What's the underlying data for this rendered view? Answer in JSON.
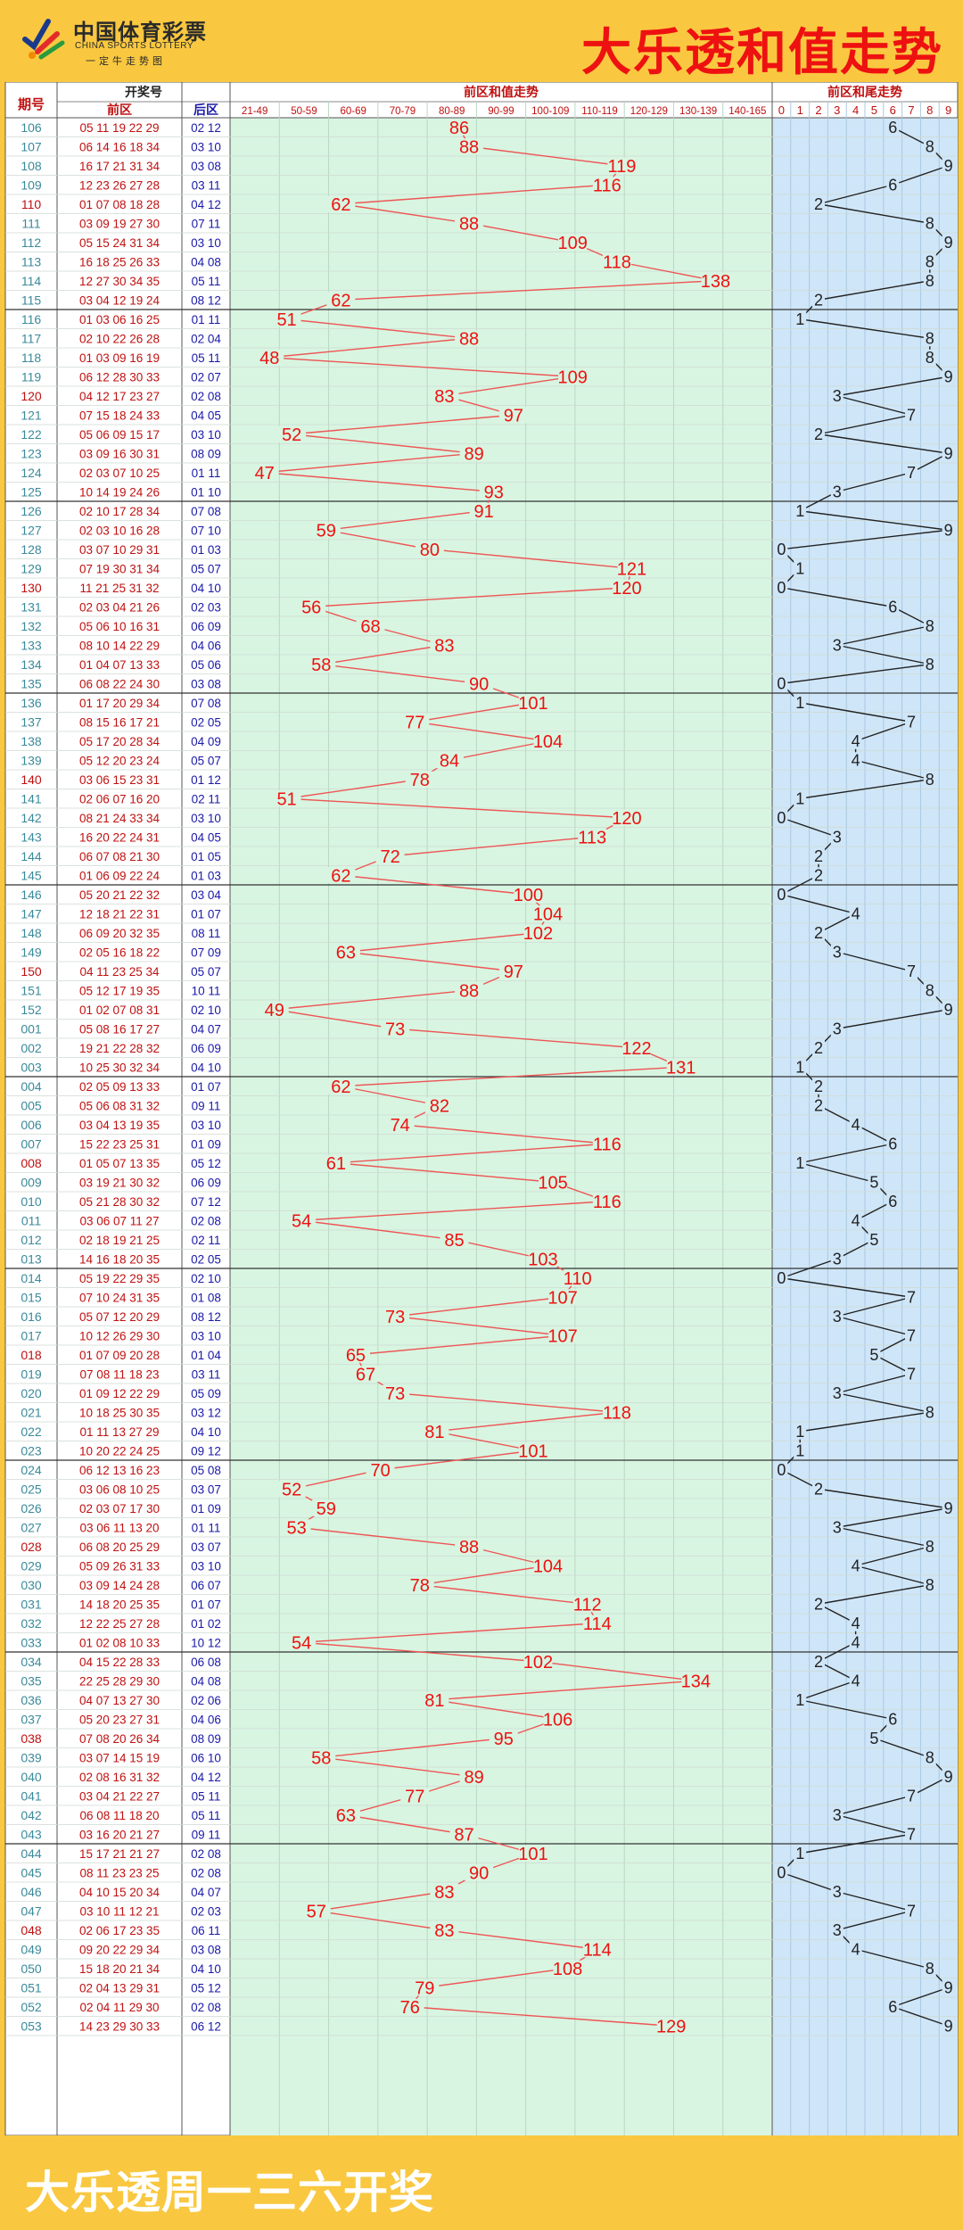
{
  "header": {
    "logo_cn": "中国体育彩票",
    "logo_en": "CHINA SPORTS LOTTERY",
    "logo_tag": "一定牛走势图",
    "title": "大乐透和值走势"
  },
  "footer": {
    "text": "大乐透周一三六开奖"
  },
  "colors": {
    "background": "#f9c840",
    "sum_area": "#d8f5e1",
    "tail_area": "#cfe6f8",
    "red": "#ee1111",
    "blue": "#1a1aa8",
    "teal": "#3a8a9a"
  },
  "chart_data": {
    "type": "line",
    "headers": {
      "issue": "期号",
      "draw": "开奖号",
      "front": "前区",
      "back": "后区",
      "sum": "前区和值走势",
      "tail": "前区和尾走势"
    },
    "sum_bins": [
      "21-49",
      "50-59",
      "60-69",
      "70-79",
      "80-89",
      "90-99",
      "100-109",
      "110-119",
      "120-129",
      "130-139",
      "140-165"
    ],
    "tail_bins": [
      "0",
      "1",
      "2",
      "3",
      "4",
      "5",
      "6",
      "7",
      "8",
      "9"
    ],
    "rows": [
      {
        "issue": "106",
        "front": "05 11 19 22 29",
        "back": "02 12",
        "sum": 86
      },
      {
        "issue": "107",
        "front": "06 14 16 18 34",
        "back": "03 10",
        "sum": 88
      },
      {
        "issue": "108",
        "front": "16 17 21 31 34",
        "back": "03 08",
        "sum": 119
      },
      {
        "issue": "109",
        "front": "12 23 26 27 28",
        "back": "03 11",
        "sum": 116
      },
      {
        "issue": "110",
        "front": "01 07 08 18 28",
        "back": "04 12",
        "sum": 62
      },
      {
        "issue": "111",
        "front": "03 09 19 27 30",
        "back": "07 11",
        "sum": 88
      },
      {
        "issue": "112",
        "front": "05 15 24 31 34",
        "back": "03 10",
        "sum": 109
      },
      {
        "issue": "113",
        "front": "16 18 25 26 33",
        "back": "04 08",
        "sum": 118
      },
      {
        "issue": "114",
        "front": "12 27 30 34 35",
        "back": "05 11",
        "sum": 138
      },
      {
        "issue": "115",
        "front": "03 04 12 19 24",
        "back": "08 12",
        "sum": 62
      },
      {
        "issue": "116",
        "front": "01 03 06 16 25",
        "back": "01 11",
        "sum": 51
      },
      {
        "issue": "117",
        "front": "02 10 22 26 28",
        "back": "02 04",
        "sum": 88
      },
      {
        "issue": "118",
        "front": "01 03 09 16 19",
        "back": "05 11",
        "sum": 48
      },
      {
        "issue": "119",
        "front": "06 12 28 30 33",
        "back": "02 07",
        "sum": 109
      },
      {
        "issue": "120",
        "front": "04 12 17 23 27",
        "back": "02 08",
        "sum": 83
      },
      {
        "issue": "121",
        "front": "07 15 18 24 33",
        "back": "04 05",
        "sum": 97
      },
      {
        "issue": "122",
        "front": "05 06 09 15 17",
        "back": "03 10",
        "sum": 52
      },
      {
        "issue": "123",
        "front": "03 09 16 30 31",
        "back": "08 09",
        "sum": 89
      },
      {
        "issue": "124",
        "front": "02 03 07 10 25",
        "back": "01 11",
        "sum": 47
      },
      {
        "issue": "125",
        "front": "10 14 19 24 26",
        "back": "01 10",
        "sum": 93
      },
      {
        "issue": "126",
        "front": "02 10 17 28 34",
        "back": "07 08",
        "sum": 91
      },
      {
        "issue": "127",
        "front": "02 03 10 16 28",
        "back": "07 10",
        "sum": 59
      },
      {
        "issue": "128",
        "front": "03 07 10 29 31",
        "back": "01 03",
        "sum": 80
      },
      {
        "issue": "129",
        "front": "07 19 30 31 34",
        "back": "05 07",
        "sum": 121
      },
      {
        "issue": "130",
        "front": "11 21 25 31 32",
        "back": "04 10",
        "sum": 120
      },
      {
        "issue": "131",
        "front": "02 03 04 21 26",
        "back": "02 03",
        "sum": 56
      },
      {
        "issue": "132",
        "front": "05 06 10 16 31",
        "back": "06 09",
        "sum": 68
      },
      {
        "issue": "133",
        "front": "08 10 14 22 29",
        "back": "04 06",
        "sum": 83
      },
      {
        "issue": "134",
        "front": "01 04 07 13 33",
        "back": "05 06",
        "sum": 58
      },
      {
        "issue": "135",
        "front": "06 08 22 24 30",
        "back": "03 08",
        "sum": 90
      },
      {
        "issue": "136",
        "front": "01 17 20 29 34",
        "back": "07 08",
        "sum": 101
      },
      {
        "issue": "137",
        "front": "08 15 16 17 21",
        "back": "02 05",
        "sum": 77
      },
      {
        "issue": "138",
        "front": "05 17 20 28 34",
        "back": "04 09",
        "sum": 104
      },
      {
        "issue": "139",
        "front": "05 12 20 23 24",
        "back": "05 07",
        "sum": 84
      },
      {
        "issue": "140",
        "front": "03 06 15 23 31",
        "back": "01 12",
        "sum": 78
      },
      {
        "issue": "141",
        "front": "02 06 07 16 20",
        "back": "02 11",
        "sum": 51
      },
      {
        "issue": "142",
        "front": "08 21 24 33 34",
        "back": "03 10",
        "sum": 120
      },
      {
        "issue": "143",
        "front": "16 20 22 24 31",
        "back": "04 05",
        "sum": 113
      },
      {
        "issue": "144",
        "front": "06 07 08 21 30",
        "back": "01 05",
        "sum": 72
      },
      {
        "issue": "145",
        "front": "01 06 09 22 24",
        "back": "01 03",
        "sum": 62
      },
      {
        "issue": "146",
        "front": "05 20 21 22 32",
        "back": "03 04",
        "sum": 100
      },
      {
        "issue": "147",
        "front": "12 18 21 22 31",
        "back": "01 07",
        "sum": 104
      },
      {
        "issue": "148",
        "front": "06 09 20 32 35",
        "back": "08 11",
        "sum": 102
      },
      {
        "issue": "149",
        "front": "02 05 16 18 22",
        "back": "07 09",
        "sum": 63
      },
      {
        "issue": "150",
        "front": "04 11 23 25 34",
        "back": "05 07",
        "sum": 97
      },
      {
        "issue": "151",
        "front": "05 12 17 19 35",
        "back": "10 11",
        "sum": 88
      },
      {
        "issue": "152",
        "front": "01 02 07 08 31",
        "back": "02 10",
        "sum": 49
      },
      {
        "issue": "001",
        "front": "05 08 16 17 27",
        "back": "04 07",
        "sum": 73
      },
      {
        "issue": "002",
        "front": "19 21 22 28 32",
        "back": "06 09",
        "sum": 122
      },
      {
        "issue": "003",
        "front": "10 25 30 32 34",
        "back": "04 10",
        "sum": 131
      },
      {
        "issue": "004",
        "front": "02 05 09 13 33",
        "back": "01 07",
        "sum": 62
      },
      {
        "issue": "005",
        "front": "05 06 08 31 32",
        "back": "09 11",
        "sum": 82
      },
      {
        "issue": "006",
        "front": "03 04 13 19 35",
        "back": "03 10",
        "sum": 74
      },
      {
        "issue": "007",
        "front": "15 22 23 25 31",
        "back": "01 09",
        "sum": 116
      },
      {
        "issue": "008",
        "front": "01 05 07 13 35",
        "back": "05 12",
        "sum": 61
      },
      {
        "issue": "009",
        "front": "03 19 21 30 32",
        "back": "06 09",
        "sum": 105
      },
      {
        "issue": "010",
        "front": "05 21 28 30 32",
        "back": "07 12",
        "sum": 116
      },
      {
        "issue": "011",
        "front": "03 06 07 11 27",
        "back": "02 08",
        "sum": 54
      },
      {
        "issue": "012",
        "front": "02 18 19 21 25",
        "back": "02 11",
        "sum": 85
      },
      {
        "issue": "013",
        "front": "14 16 18 20 35",
        "back": "02 05",
        "sum": 103
      },
      {
        "issue": "014",
        "front": "05 19 22 29 35",
        "back": "02 10",
        "sum": 110
      },
      {
        "issue": "015",
        "front": "07 10 24 31 35",
        "back": "01 08",
        "sum": 107
      },
      {
        "issue": "016",
        "front": "05 07 12 20 29",
        "back": "08 12",
        "sum": 73
      },
      {
        "issue": "017",
        "front": "10 12 26 29 30",
        "back": "03 10",
        "sum": 107
      },
      {
        "issue": "018",
        "front": "01 07 09 20 28",
        "back": "01 04",
        "sum": 65
      },
      {
        "issue": "019",
        "front": "07 08 11 18 23",
        "back": "03 11",
        "sum": 67
      },
      {
        "issue": "020",
        "front": "01 09 12 22 29",
        "back": "05 09",
        "sum": 73
      },
      {
        "issue": "021",
        "front": "10 18 25 30 35",
        "back": "03 12",
        "sum": 118
      },
      {
        "issue": "022",
        "front": "01 11 13 27 29",
        "back": "04 10",
        "sum": 81
      },
      {
        "issue": "023",
        "front": "10 20 22 24 25",
        "back": "09 12",
        "sum": 101
      },
      {
        "issue": "024",
        "front": "06 12 13 16 23",
        "back": "05 08",
        "sum": 70
      },
      {
        "issue": "025",
        "front": "03 06 08 10 25",
        "back": "03 07",
        "sum": 52
      },
      {
        "issue": "026",
        "front": "02 03 07 17 30",
        "back": "01 09",
        "sum": 59
      },
      {
        "issue": "027",
        "front": "03 06 11 13 20",
        "back": "01 11",
        "sum": 53
      },
      {
        "issue": "028",
        "front": "06 08 20 25 29",
        "back": "03 07",
        "sum": 88
      },
      {
        "issue": "029",
        "front": "05 09 26 31 33",
        "back": "03 10",
        "sum": 104
      },
      {
        "issue": "030",
        "front": "03 09 14 24 28",
        "back": "06 07",
        "sum": 78
      },
      {
        "issue": "031",
        "front": "14 18 20 25 35",
        "back": "01 07",
        "sum": 112
      },
      {
        "issue": "032",
        "front": "12 22 25 27 28",
        "back": "01 02",
        "sum": 114
      },
      {
        "issue": "033",
        "front": "01 02 08 10 33",
        "back": "10 12",
        "sum": 54
      },
      {
        "issue": "034",
        "front": "04 15 22 28 33",
        "back": "06 08",
        "sum": 102
      },
      {
        "issue": "035",
        "front": "22 25 28 29 30",
        "back": "04 08",
        "sum": 134
      },
      {
        "issue": "036",
        "front": "04 07 13 27 30",
        "back": "02 06",
        "sum": 81
      },
      {
        "issue": "037",
        "front": "05 20 23 27 31",
        "back": "04 06",
        "sum": 106
      },
      {
        "issue": "038",
        "front": "07 08 20 26 34",
        "back": "08 09",
        "sum": 95
      },
      {
        "issue": "039",
        "front": "03 07 14 15 19",
        "back": "06 10",
        "sum": 58
      },
      {
        "issue": "040",
        "front": "02 08 16 31 32",
        "back": "04 12",
        "sum": 89
      },
      {
        "issue": "041",
        "front": "03 04 21 22 27",
        "back": "05 11",
        "sum": 77
      },
      {
        "issue": "042",
        "front": "06 08 11 18 20",
        "back": "05 11",
        "sum": 63
      },
      {
        "issue": "043",
        "front": "03 16 20 21 27",
        "back": "09 11",
        "sum": 87
      },
      {
        "issue": "044",
        "front": "15 17 21 21 27",
        "back": "02 08",
        "sum": 101
      },
      {
        "issue": "045",
        "front": "08 11 23 23 25",
        "back": "02 08",
        "sum": 90
      },
      {
        "issue": "046",
        "front": "04 10 15 20 34",
        "back": "04 07",
        "sum": 83
      },
      {
        "issue": "047",
        "front": "03 10 11 12 21",
        "back": "02 03",
        "sum": 57
      },
      {
        "issue": "048",
        "front": "02 06 17 23 35",
        "back": "06 11",
        "sum": 83
      },
      {
        "issue": "049",
        "front": "09 20 22 29 34",
        "back": "03 08",
        "sum": 114
      },
      {
        "issue": "050",
        "front": "15 18 20 21 34",
        "back": "04 10",
        "sum": 108
      },
      {
        "issue": "051",
        "front": "02 04 13 29 31",
        "back": "05 12",
        "sum": 79
      },
      {
        "issue": "052",
        "front": "02 04 11 29 30",
        "back": "02 08",
        "sum": 76
      },
      {
        "issue": "053",
        "front": "14 23 29 30 33",
        "back": "06 12",
        "sum": 129
      }
    ]
  }
}
